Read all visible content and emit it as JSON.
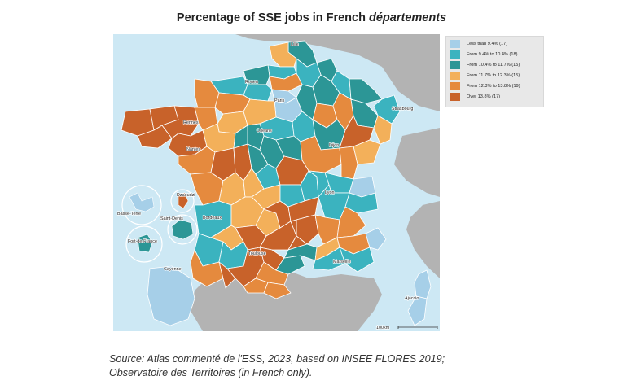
{
  "title": {
    "prefix": "Percentage of SSE jobs in French ",
    "italic": "départements"
  },
  "colors": {
    "sea": "#cde8f4",
    "neighbors": "#b3b3b3",
    "legend_bg": "#e8e8e8",
    "light_blue": "#a6cfe8",
    "mid_teal": "#3bb3bf",
    "dark_teal": "#2c9696",
    "light_orange": "#f3b05a",
    "mid_orange": "#e58a3e",
    "dark_orange": "#c8622a"
  },
  "legend": [
    {
      "label": "Less than 9.4% (17)",
      "color": "#a6cfe8"
    },
    {
      "label": "From 9.4% to 10.4% (18)",
      "color": "#3bb3bf"
    },
    {
      "label": "From 10.4% to 11.7% (15)",
      "color": "#2c9696"
    },
    {
      "label": "From 11.7% to 12.3% (15)",
      "color": "#f3b05a"
    },
    {
      "label": "From 12.3% to 13.8% (19)",
      "color": "#e58a3e"
    },
    {
      "label": "Over 13.8% (17)",
      "color": "#c8622a"
    }
  ],
  "cities": {
    "lille": "Lille",
    "rouen": "Rouen",
    "paris": "Paris",
    "strasbourg": "Strasbourg",
    "rennes": "Rennes",
    "orleans": "Orleans",
    "nantes": "Nantes",
    "dijon": "Dijon",
    "lyon": "Lyon",
    "bordeaux": "Bordeaux",
    "toulouse": "Toulouse",
    "marseille": "Marseille",
    "ajaccio": "Ajaccio",
    "basse_terre": "Basse-Terre",
    "saint_denis": "Saint-Denis",
    "dzaoudzi": "Dzaoudzi",
    "fort_de_france": "Fort-de-France",
    "cayenne": "Cayenne"
  },
  "scale_bar": "100km",
  "source": {
    "line1": "Source: Atlas commenté de l'ESS, 2023, based on INSEE FLORES 2019;",
    "line2": "Observatoire des Territoires (in French only)."
  }
}
